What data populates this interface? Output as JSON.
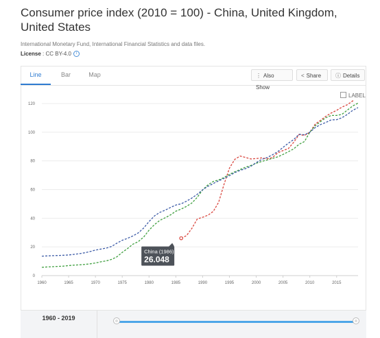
{
  "title": "Consumer price index (2010 = 100) - China, United Kingdom, United States",
  "source": "International Monetary Fund, International Financial Statistics and data files.",
  "license": {
    "label": "License",
    "value": "CC BY-4.0"
  },
  "tabs": [
    {
      "label": "Line"
    },
    {
      "label": "Bar"
    },
    {
      "label": "Map"
    }
  ],
  "toolbar": {
    "also_show": "Also Show",
    "share": "Share",
    "details": "Details"
  },
  "label_toggle": "LABEL",
  "range": {
    "start": "1960",
    "end": "2019"
  },
  "tooltip": {
    "title": "China (1986)",
    "value": "26.048"
  },
  "colors": {
    "china": "#d9453d",
    "uk": "#3f9f3f",
    "us": "#3b5aa6",
    "accent": "#2e7bd1",
    "slider": "#4da6e8"
  },
  "chart_data": {
    "type": "line",
    "xlim": [
      1960,
      2019
    ],
    "ylim": [
      0,
      120
    ],
    "xticks": [
      1960,
      1965,
      1970,
      1975,
      1980,
      1985,
      1990,
      1995,
      2000,
      2005,
      2010,
      2015
    ],
    "yticks": [
      0,
      20,
      40,
      60,
      80,
      100,
      120
    ],
    "grid": "horizontal",
    "series": [
      {
        "name": "China",
        "color": "#d9453d",
        "x": [
          1986,
          1987,
          1988,
          1989,
          1990,
          1991,
          1992,
          1993,
          1994,
          1995,
          1996,
          1997,
          1998,
          1999,
          2000,
          2001,
          2002,
          2003,
          2004,
          2005,
          2006,
          2007,
          2008,
          2009,
          2010,
          2011,
          2012,
          2013,
          2014,
          2015,
          2016,
          2017,
          2018,
          2019
        ],
        "y": [
          26.05,
          27.9,
          33.0,
          39.5,
          40.7,
          42.1,
          44.8,
          51.2,
          63.8,
          74.9,
          81.1,
          83.4,
          82.4,
          81.3,
          81.6,
          82.1,
          81.4,
          82.3,
          85.6,
          87.2,
          88.6,
          93.0,
          98.4,
          97.7,
          100.0,
          105.6,
          108.3,
          111.1,
          113.4,
          115.2,
          117.5,
          119.2,
          121.8,
          125.4
        ]
      },
      {
        "name": "United Kingdom",
        "color": "#3f9f3f",
        "x": [
          1960,
          1961,
          1962,
          1963,
          1964,
          1965,
          1966,
          1967,
          1968,
          1969,
          1970,
          1971,
          1972,
          1973,
          1974,
          1975,
          1976,
          1977,
          1978,
          1979,
          1980,
          1981,
          1982,
          1983,
          1984,
          1985,
          1986,
          1987,
          1988,
          1989,
          1990,
          1991,
          1992,
          1993,
          1994,
          1995,
          1996,
          1997,
          1998,
          1999,
          2000,
          2001,
          2002,
          2003,
          2004,
          2005,
          2006,
          2007,
          2008,
          2009,
          2010,
          2011,
          2012,
          2013,
          2014,
          2015,
          2016,
          2017,
          2018,
          2019
        ],
        "y": [
          5.8,
          6.0,
          6.2,
          6.4,
          6.6,
          7.0,
          7.3,
          7.5,
          7.8,
          8.2,
          8.8,
          9.6,
          10.3,
          11.3,
          13.1,
          16.2,
          18.9,
          21.9,
          23.7,
          26.9,
          31.7,
          35.5,
          38.5,
          40.3,
          42.3,
          44.9,
          46.4,
          48.3,
          50.7,
          54.6,
          59.8,
          63.3,
          65.7,
          66.7,
          68.4,
          70.6,
          72.4,
          74.0,
          75.6,
          76.8,
          78.3,
          79.6,
          80.6,
          81.7,
          82.8,
          84.5,
          86.4,
          88.4,
          91.6,
          93.5,
          100.0,
          104.5,
          107.4,
          110.1,
          111.7,
          111.7,
          112.5,
          115.4,
          118.3,
          120.3
        ]
      },
      {
        "name": "United States",
        "color": "#3b5aa6",
        "x": [
          1960,
          1961,
          1962,
          1963,
          1964,
          1965,
          1966,
          1967,
          1968,
          1969,
          1970,
          1971,
          1972,
          1973,
          1974,
          1975,
          1976,
          1977,
          1978,
          1979,
          1980,
          1981,
          1982,
          1983,
          1984,
          1985,
          1986,
          1987,
          1988,
          1989,
          1990,
          1991,
          1992,
          1993,
          1994,
          1995,
          1996,
          1997,
          1998,
          1999,
          2000,
          2001,
          2002,
          2003,
          2004,
          2005,
          2006,
          2007,
          2008,
          2009,
          2010,
          2011,
          2012,
          2013,
          2014,
          2015,
          2016,
          2017,
          2018,
          2019
        ],
        "y": [
          13.6,
          13.7,
          13.9,
          14.0,
          14.2,
          14.4,
          14.8,
          15.3,
          15.9,
          16.8,
          17.8,
          18.5,
          19.1,
          20.3,
          22.6,
          24.6,
          26.0,
          27.7,
          29.8,
          33.2,
          37.7,
          41.6,
          44.1,
          45.6,
          47.5,
          49.2,
          50.1,
          51.9,
          54.1,
          56.7,
          59.8,
          62.3,
          64.2,
          66.1,
          67.8,
          69.7,
          71.8,
          73.4,
          74.6,
          76.2,
          78.8,
          81.0,
          82.3,
          84.2,
          86.4,
          89.4,
          92.3,
          94.9,
          98.6,
          98.2,
          100.0,
          103.2,
          105.3,
          106.8,
          108.6,
          108.7,
          110.1,
          112.4,
          115.2,
          117.2
        ]
      }
    ],
    "highlight": {
      "series": "China",
      "x": 1986,
      "y": 26.048
    }
  }
}
